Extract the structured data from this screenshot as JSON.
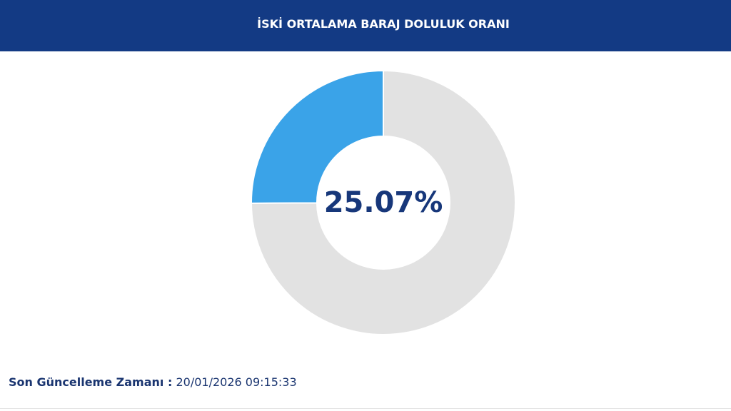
{
  "chart_data": {
    "type": "donut",
    "title": "İSKİ ORTALAMA BARAJ DOLULUK ORANI",
    "categories": [
      null,
      null
    ],
    "values": [
      25.07,
      74.93
    ],
    "value_labels": [
      "25.07%",
      null
    ],
    "colors": [
      "#3aa3e8",
      "#e2e2e2"
    ]
  },
  "footer": {
    "label": "Son Güncelleme Zamanı :",
    "value": "20/01/2026 09:15:33"
  }
}
